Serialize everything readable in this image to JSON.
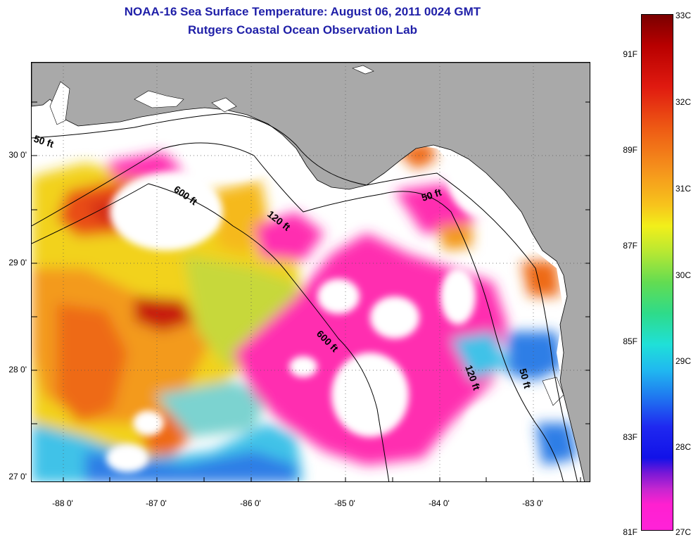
{
  "title": {
    "line1": "NOAA-16 Sea Surface Temperature:  August 06, 2011 0024 GMT",
    "line2": "Rutgers Coastal Ocean Observation Lab"
  },
  "axes": {
    "lat_labels": [
      "30 0'",
      "29 0'",
      "28 0'",
      "27 0'"
    ],
    "lon_labels": [
      "-88 0'",
      "-87 0'",
      "-86 0'",
      "-85 0'",
      "-84 0'",
      "-83 0'"
    ]
  },
  "contour_labels": [
    "50 ft",
    "600 ft",
    "120 ft",
    "50 ft",
    "600 ft",
    "120 ft",
    "50 ft"
  ],
  "colorbar": {
    "celsius": [
      "33C",
      "32C",
      "31C",
      "30C",
      "29C",
      "28C",
      "27C"
    ],
    "fahrenheit": [
      "91F",
      "89F",
      "87F",
      "85F",
      "83F",
      "81F"
    ]
  },
  "colors": {
    "land": "#a9a9a9",
    "no_data": "#ffffff",
    "title": "#1f1fa8",
    "warmest": "#8b0000",
    "coolest": "#ff1fd0"
  }
}
